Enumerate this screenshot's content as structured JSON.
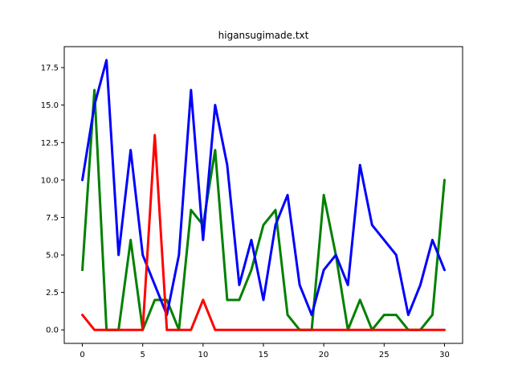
{
  "chart_data": {
    "type": "line",
    "title": "higansugimade.txt",
    "xlabel": "",
    "ylabel": "",
    "xlim": [
      -1.5,
      31.5
    ],
    "ylim": [
      -0.9,
      18.9
    ],
    "x_ticks": [
      0,
      5,
      10,
      15,
      20,
      25,
      30
    ],
    "y_ticks": [
      0.0,
      2.5,
      5.0,
      7.5,
      10.0,
      12.5,
      15.0,
      17.5
    ],
    "x_tick_labels": [
      "0",
      "5",
      "10",
      "15",
      "20",
      "25",
      "30"
    ],
    "y_tick_labels": [
      "0.0",
      "2.5",
      "5.0",
      "7.5",
      "10.0",
      "12.5",
      "15.0",
      "17.5"
    ],
    "grid": false,
    "x": [
      0,
      1,
      2,
      3,
      4,
      5,
      6,
      7,
      8,
      9,
      10,
      11,
      12,
      13,
      14,
      15,
      16,
      17,
      18,
      19,
      20,
      21,
      22,
      23,
      24,
      25,
      26,
      27,
      28,
      29,
      30
    ],
    "series": [
      {
        "color": "#008000",
        "values": [
          4,
          16,
          0,
          0,
          6,
          0,
          2,
          2,
          0,
          8,
          7,
          12,
          2,
          2,
          4,
          7,
          8,
          1,
          0,
          0,
          9,
          5,
          0,
          2,
          0,
          1,
          1,
          0,
          0,
          1,
          10
        ]
      },
      {
        "color": "#0000ff",
        "values": [
          10,
          15,
          18,
          5,
          12,
          5,
          3,
          1,
          5,
          16,
          6,
          15,
          11,
          3,
          6,
          2,
          7,
          9,
          3,
          1,
          4,
          5,
          3,
          11,
          7,
          6,
          5,
          1,
          3,
          6,
          4
        ]
      },
      {
        "color": "#ff0000",
        "values": [
          1,
          0,
          0,
          0,
          0,
          0,
          13,
          0,
          0,
          0,
          2,
          0,
          0,
          0,
          0,
          0,
          0,
          0,
          0,
          0,
          0,
          0,
          0,
          0,
          0,
          0,
          0,
          0,
          0,
          0,
          0
        ]
      }
    ]
  }
}
